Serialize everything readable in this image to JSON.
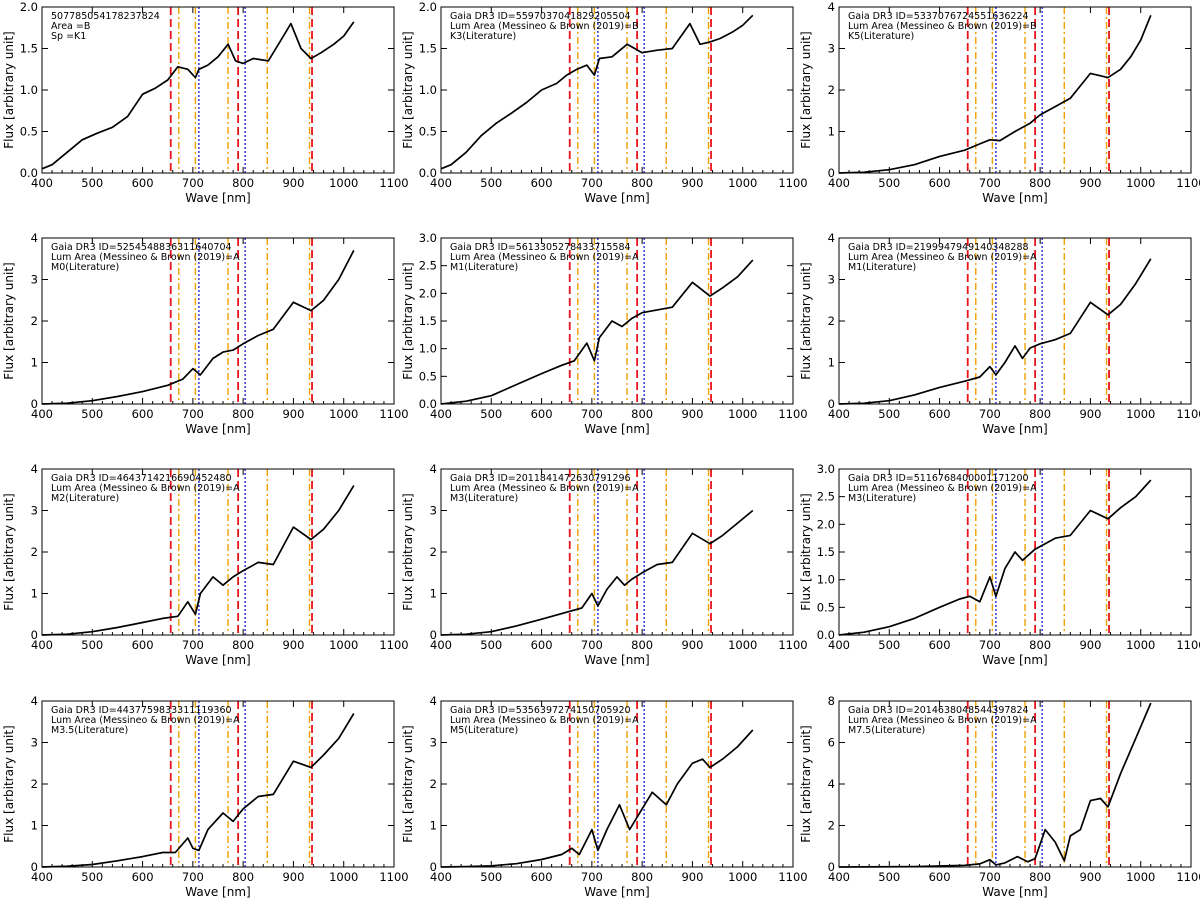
{
  "figure": {
    "xlabel": "Wave [nm]",
    "ylabel": "Flux [arbitrary unit]",
    "xlim": [
      400,
      1100
    ],
    "xticks": [
      400,
      500,
      600,
      700,
      800,
      900,
      1000,
      1100
    ],
    "line_colors": {
      "red": "#e8141b",
      "orange": "#f0a000",
      "blue": "#2b2bd6",
      "curve": "#000000"
    },
    "marker_lines": [
      {
        "x": 656,
        "color": "red",
        "style": "dashed"
      },
      {
        "x": 672,
        "color": "orange",
        "style": "dashdot"
      },
      {
        "x": 705,
        "color": "orange",
        "style": "dashdot"
      },
      {
        "x": 712,
        "color": "blue",
        "style": "dotted"
      },
      {
        "x": 770,
        "color": "orange",
        "style": "dashdot"
      },
      {
        "x": 790,
        "color": "red",
        "style": "dashed"
      },
      {
        "x": 804,
        "color": "blue",
        "style": "dotted"
      },
      {
        "x": 848,
        "color": "orange",
        "style": "dashdot"
      },
      {
        "x": 932,
        "color": "orange",
        "style": "dashdot"
      },
      {
        "x": 937,
        "color": "red",
        "style": "dashed"
      }
    ]
  },
  "chart_data": [
    {
      "type": "line",
      "title_lines": [
        "5077850541782378​24",
        "Area =B",
        "Sp =K1"
      ],
      "ylim": [
        0,
        2.0
      ],
      "yticks": [
        0.0,
        0.5,
        1.0,
        1.5,
        2.0
      ],
      "ytick_labels": [
        "0.0",
        "0.5",
        "1.0",
        "1.5",
        "2.0"
      ],
      "x": [
        400,
        420,
        450,
        480,
        510,
        540,
        570,
        600,
        625,
        650,
        670,
        690,
        705,
        712,
        730,
        750,
        770,
        785,
        800,
        820,
        850,
        875,
        895,
        915,
        935,
        955,
        980,
        1000,
        1020
      ],
      "y": [
        0.05,
        0.1,
        0.25,
        0.4,
        0.48,
        0.55,
        0.68,
        0.95,
        1.02,
        1.12,
        1.28,
        1.25,
        1.15,
        1.25,
        1.3,
        1.4,
        1.55,
        1.35,
        1.32,
        1.38,
        1.35,
        1.6,
        1.8,
        1.5,
        1.38,
        1.45,
        1.55,
        1.65,
        1.82
      ]
    },
    {
      "type": "line",
      "title_lines": [
        "Gaia DR3 ID=5597037041829205504",
        "  Lum Area (Messineo & Brown (2019)=B",
        "K3(Literature)"
      ],
      "ylim": [
        0,
        2.0
      ],
      "yticks": [
        0.0,
        0.5,
        1.0,
        1.5,
        2.0
      ],
      "ytick_labels": [
        "0.0",
        "0.5",
        "1.0",
        "1.5",
        "2.0"
      ],
      "x": [
        400,
        420,
        450,
        480,
        510,
        540,
        570,
        600,
        630,
        650,
        670,
        690,
        705,
        715,
        740,
        770,
        800,
        830,
        860,
        895,
        915,
        935,
        955,
        980,
        1000,
        1020
      ],
      "y": [
        0.05,
        0.1,
        0.25,
        0.45,
        0.6,
        0.72,
        0.85,
        1.0,
        1.08,
        1.18,
        1.25,
        1.3,
        1.18,
        1.38,
        1.4,
        1.55,
        1.45,
        1.48,
        1.5,
        1.8,
        1.55,
        1.58,
        1.62,
        1.7,
        1.78,
        1.9
      ]
    },
    {
      "type": "line",
      "title_lines": [
        "Gaia DR3 ID=5337076724551636224",
        "  Lum Area (Messineo & Brown (2019)=B",
        "K5(Literature)"
      ],
      "ylim": [
        0,
        4
      ],
      "yticks": [
        0,
        1,
        2,
        3,
        4
      ],
      "ytick_labels": [
        "0",
        "1",
        "2",
        "3",
        "4"
      ],
      "x": [
        400,
        450,
        500,
        550,
        600,
        650,
        680,
        700,
        720,
        750,
        780,
        800,
        830,
        860,
        900,
        935,
        960,
        980,
        1000,
        1020
      ],
      "y": [
        0.0,
        0.02,
        0.08,
        0.2,
        0.4,
        0.55,
        0.7,
        0.8,
        0.78,
        1.0,
        1.2,
        1.4,
        1.6,
        1.8,
        2.4,
        2.3,
        2.5,
        2.8,
        3.2,
        3.8
      ]
    },
    {
      "type": "line",
      "title_lines": [
        "Gaia DR3 ID=5254548836311640704",
        "  Lum Area (Messineo & Brown (2019)=A",
        "M0(Literature)"
      ],
      "ylim": [
        0,
        4
      ],
      "yticks": [
        0,
        1,
        2,
        3,
        4
      ],
      "ytick_labels": [
        "0",
        "1",
        "2",
        "3",
        "4"
      ],
      "x": [
        400,
        450,
        500,
        550,
        600,
        650,
        680,
        700,
        715,
        740,
        760,
        780,
        800,
        830,
        860,
        900,
        935,
        960,
        990,
        1020
      ],
      "y": [
        0.0,
        0.02,
        0.08,
        0.18,
        0.3,
        0.45,
        0.6,
        0.85,
        0.7,
        1.1,
        1.25,
        1.3,
        1.45,
        1.65,
        1.8,
        2.45,
        2.25,
        2.5,
        3.0,
        3.7
      ]
    },
    {
      "type": "line",
      "title_lines": [
        "Gaia DR3 ID=5613305278433715584",
        "  Lum Area (Messineo & Brown (2019)=A",
        "M1(Literature)"
      ],
      "ylim": [
        0,
        3.0
      ],
      "yticks": [
        0.0,
        0.5,
        1.0,
        1.5,
        2.0,
        2.5,
        3.0
      ],
      "ytick_labels": [
        "0.0",
        "0.5",
        "1.0",
        "1.5",
        "2.0",
        "2.5",
        "3.0"
      ],
      "x": [
        400,
        450,
        500,
        550,
        600,
        640,
        665,
        690,
        705,
        715,
        740,
        760,
        780,
        800,
        830,
        860,
        900,
        935,
        960,
        990,
        1020
      ],
      "y": [
        0.0,
        0.05,
        0.15,
        0.35,
        0.55,
        0.7,
        0.78,
        1.1,
        0.78,
        1.2,
        1.5,
        1.4,
        1.55,
        1.65,
        1.7,
        1.75,
        2.2,
        1.95,
        2.1,
        2.3,
        2.6
      ]
    },
    {
      "type": "line",
      "title_lines": [
        "Gaia DR3 ID=2199947949140348288",
        "  Lum Area (Messineo & Brown (2019)=A",
        "M1(Literature)"
      ],
      "ylim": [
        0,
        4
      ],
      "yticks": [
        0,
        1,
        2,
        3,
        4
      ],
      "ytick_labels": [
        "0",
        "1",
        "2",
        "3",
        "4"
      ],
      "x": [
        400,
        450,
        500,
        550,
        600,
        650,
        680,
        700,
        712,
        730,
        750,
        765,
        780,
        800,
        830,
        860,
        900,
        935,
        960,
        990,
        1020
      ],
      "y": [
        0.0,
        0.02,
        0.08,
        0.22,
        0.4,
        0.55,
        0.65,
        0.9,
        0.7,
        1.0,
        1.4,
        1.1,
        1.35,
        1.45,
        1.55,
        1.7,
        2.45,
        2.15,
        2.4,
        2.9,
        3.5
      ]
    },
    {
      "type": "line",
      "title_lines": [
        "Gaia DR3 ID=4643714216690452480",
        "  Lum Area (Messineo & Brown (2019)=A",
        "M2(Literature)"
      ],
      "ylim": [
        0,
        4
      ],
      "yticks": [
        0,
        1,
        2,
        3,
        4
      ],
      "ytick_labels": [
        "0",
        "1",
        "2",
        "3",
        "4"
      ],
      "x": [
        400,
        450,
        500,
        550,
        600,
        640,
        670,
        690,
        705,
        715,
        740,
        760,
        780,
        800,
        830,
        860,
        900,
        935,
        960,
        990,
        1020
      ],
      "y": [
        0.0,
        0.02,
        0.08,
        0.18,
        0.3,
        0.4,
        0.45,
        0.8,
        0.5,
        1.0,
        1.4,
        1.2,
        1.4,
        1.55,
        1.75,
        1.7,
        2.6,
        2.3,
        2.55,
        3.0,
        3.6
      ]
    },
    {
      "type": "line",
      "title_lines": [
        "Gaia DR3 ID=2011841472630791296",
        "  Lum Area (Messineo & Brown (2019)=A",
        "M3(Literature)"
      ],
      "ylim": [
        0,
        4
      ],
      "yticks": [
        0,
        1,
        2,
        3,
        4
      ],
      "ytick_labels": [
        "0",
        "1",
        "2",
        "3",
        "4"
      ],
      "x": [
        400,
        450,
        500,
        550,
        600,
        650,
        680,
        700,
        712,
        730,
        750,
        765,
        780,
        800,
        830,
        860,
        900,
        935,
        960,
        990,
        1020
      ],
      "y": [
        0.0,
        0.02,
        0.08,
        0.22,
        0.38,
        0.55,
        0.65,
        1.0,
        0.7,
        1.1,
        1.4,
        1.2,
        1.35,
        1.5,
        1.7,
        1.75,
        2.45,
        2.2,
        2.4,
        2.7,
        3.0
      ]
    },
    {
      "type": "line",
      "title_lines": [
        "Gaia DR3 ID=5116768400001171200",
        "  Lum Area (Messineo & Brown (2019)=A",
        "M3(Literature)"
      ],
      "ylim": [
        0,
        3.0
      ],
      "yticks": [
        0.0,
        0.5,
        1.0,
        1.5,
        2.0,
        2.5,
        3.0
      ],
      "ytick_labels": [
        "0.0",
        "0.5",
        "1.0",
        "1.5",
        "2.0",
        "2.5",
        "3.0"
      ],
      "x": [
        400,
        450,
        500,
        550,
        600,
        640,
        660,
        680,
        700,
        712,
        730,
        750,
        765,
        790,
        830,
        860,
        900,
        935,
        960,
        990,
        1020
      ],
      "y": [
        0.0,
        0.05,
        0.15,
        0.3,
        0.5,
        0.65,
        0.7,
        0.6,
        1.05,
        0.7,
        1.2,
        1.5,
        1.35,
        1.55,
        1.75,
        1.8,
        2.25,
        2.1,
        2.3,
        2.5,
        2.8
      ]
    },
    {
      "type": "line",
      "title_lines": [
        "Gaia DR3 ID=4437759833311119360",
        "  Lum Area (Messineo & Brown (2019)=A",
        "M3.5(Literature)"
      ],
      "ylim": [
        0,
        4
      ],
      "yticks": [
        0,
        1,
        2,
        3,
        4
      ],
      "ytick_labels": [
        "0",
        "1",
        "2",
        "3",
        "4"
      ],
      "x": [
        400,
        450,
        500,
        550,
        600,
        640,
        665,
        690,
        700,
        712,
        730,
        760,
        780,
        800,
        830,
        860,
        900,
        935,
        960,
        990,
        1020
      ],
      "y": [
        0.0,
        0.02,
        0.06,
        0.15,
        0.25,
        0.35,
        0.35,
        0.7,
        0.45,
        0.4,
        0.9,
        1.3,
        1.1,
        1.4,
        1.7,
        1.75,
        2.55,
        2.4,
        2.7,
        3.1,
        3.7
      ]
    },
    {
      "type": "line",
      "title_lines": [
        "Gaia DR3 ID=5356397274150705920",
        "  Lum Area (Messineo & Brown (2019)=A",
        "M5(Literature)"
      ],
      "ylim": [
        0,
        4
      ],
      "yticks": [
        0,
        1,
        2,
        3,
        4
      ],
      "ytick_labels": [
        "0",
        "1",
        "2",
        "3",
        "4"
      ],
      "x": [
        400,
        450,
        500,
        550,
        600,
        640,
        660,
        675,
        700,
        712,
        730,
        755,
        775,
        800,
        820,
        848,
        870,
        900,
        920,
        935,
        960,
        990,
        1020
      ],
      "y": [
        0.0,
        0.01,
        0.03,
        0.08,
        0.18,
        0.3,
        0.45,
        0.3,
        0.9,
        0.4,
        0.9,
        1.5,
        0.9,
        1.4,
        1.8,
        1.5,
        2.0,
        2.5,
        2.6,
        2.4,
        2.6,
        2.9,
        3.3
      ]
    },
    {
      "type": "line",
      "title_lines": [
        "Gaia DR3 ID=2014638048544397824",
        "  Lum Area (Messineo & Brown (2019)=A",
        "M7.5(Literature)"
      ],
      "ylim": [
        0,
        8
      ],
      "yticks": [
        0,
        2,
        4,
        6,
        8
      ],
      "ytick_labels": [
        "0",
        "2",
        "4",
        "6",
        "8"
      ],
      "x": [
        400,
        550,
        600,
        650,
        680,
        700,
        712,
        730,
        755,
        775,
        790,
        810,
        830,
        848,
        860,
        880,
        900,
        920,
        935,
        960,
        990,
        1020
      ],
      "y": [
        0.0,
        0.02,
        0.05,
        0.08,
        0.15,
        0.35,
        0.1,
        0.2,
        0.5,
        0.25,
        0.4,
        1.8,
        1.2,
        0.3,
        1.5,
        1.8,
        3.2,
        3.3,
        2.9,
        4.5,
        6.2,
        7.9
      ]
    }
  ]
}
